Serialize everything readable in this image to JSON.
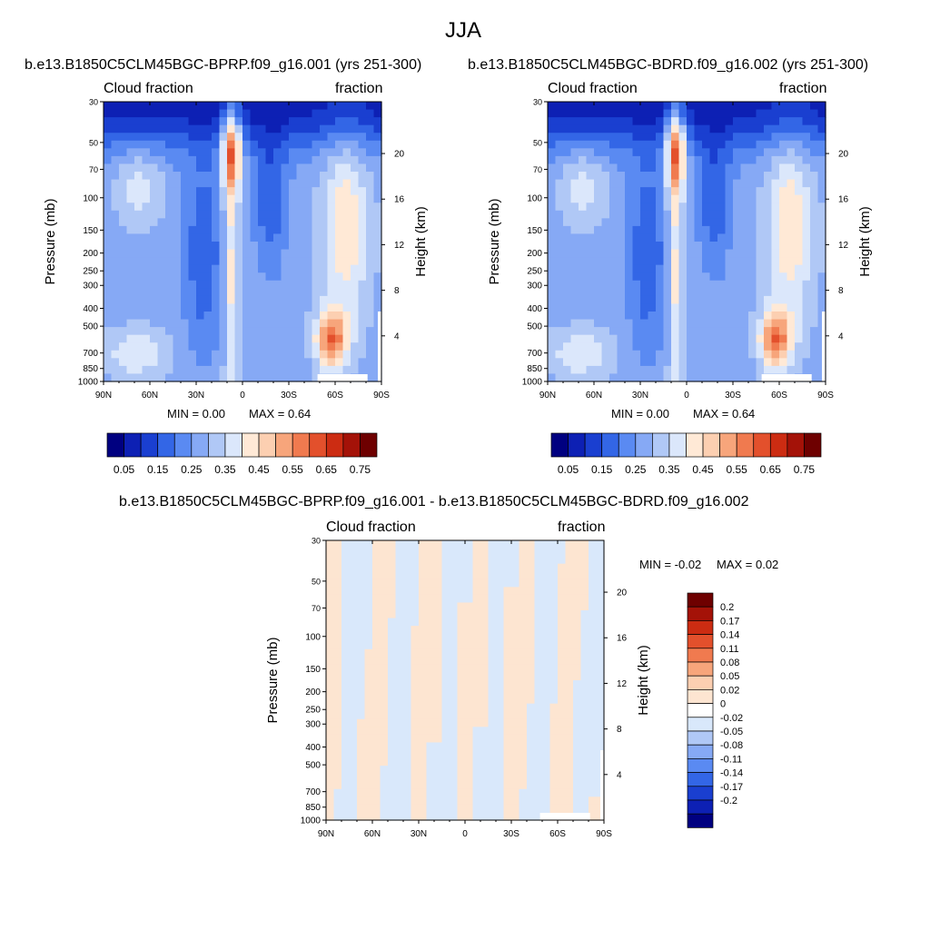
{
  "figure": {
    "title": "JJA"
  },
  "colors": {
    "full_palette": [
      "#000080",
      "#0d20b4",
      "#1a3fd0",
      "#3366e6",
      "#5a8af2",
      "#86a9f5",
      "#b0c8f6",
      "#dbe7fb",
      "#ffe9d6",
      "#fccfb1",
      "#f7a57b",
      "#f07a4f",
      "#e3502c",
      "#cc2c12",
      "#a41208",
      "#6e0000"
    ],
    "diff_palette": [
      "#000080",
      "#0d20b4",
      "#1a3fd0",
      "#3366e6",
      "#5a8af2",
      "#86a9f5",
      "#b0c8f6",
      "#d9e8fb",
      "#ffffff",
      "#fde5d1",
      "#fccfb1",
      "#f7a57b",
      "#f07a4f",
      "#e3502c",
      "#cc2c12",
      "#a41208",
      "#6e0000"
    ]
  },
  "chart_data": [
    {
      "type": "heatmap",
      "panel": "top-left",
      "title": "b.e13.B1850C5CLM45BGC-BPRP.f09_g16.001 (yrs 251-300)",
      "left_label": "Cloud fraction",
      "right_label": "fraction",
      "ylabel": "Pressure (mb)",
      "ylabel_right": "Height (km)",
      "x_ticks": [
        "90N",
        "60N",
        "30N",
        "0",
        "30S",
        "60S",
        "90S"
      ],
      "y_ticks": [
        "30",
        "50",
        "70",
        "100",
        "150",
        "200",
        "250",
        "300",
        "400",
        "500",
        "700",
        "850",
        "1000"
      ],
      "y_tick_values": [
        30,
        50,
        70,
        100,
        150,
        200,
        250,
        300,
        400,
        500,
        700,
        850,
        1000
      ],
      "right_ticks": [
        "20",
        "16",
        "12",
        "8",
        "4"
      ],
      "right_tick_values": [
        20,
        16,
        12,
        8,
        4
      ],
      "ylim": [
        1000,
        30
      ],
      "xlim": [
        90,
        -90
      ],
      "min_label": "MIN =   0.00",
      "max_label": "MAX =   0.64",
      "min": 0.0,
      "max": 0.64,
      "colorbar_labels": [
        "0.05",
        "0.15",
        "0.25",
        "0.35",
        "0.45",
        "0.55",
        "0.65",
        "0.75"
      ]
    },
    {
      "type": "heatmap",
      "panel": "top-right",
      "title": "b.e13.B1850C5CLM45BGC-BDRD.f09_g16.002 (yrs 251-300)",
      "left_label": "Cloud fraction",
      "right_label": "fraction",
      "ylabel": "Pressure (mb)",
      "ylabel_right": "Height (km)",
      "x_ticks": [
        "90N",
        "60N",
        "30N",
        "0",
        "30S",
        "60S",
        "90S"
      ],
      "y_ticks": [
        "30",
        "50",
        "70",
        "100",
        "150",
        "200",
        "250",
        "300",
        "400",
        "500",
        "700",
        "850",
        "1000"
      ],
      "y_tick_values": [
        30,
        50,
        70,
        100,
        150,
        200,
        250,
        300,
        400,
        500,
        700,
        850,
        1000
      ],
      "right_ticks": [
        "20",
        "16",
        "12",
        "8",
        "4"
      ],
      "right_tick_values": [
        20,
        16,
        12,
        8,
        4
      ],
      "ylim": [
        1000,
        30
      ],
      "xlim": [
        90,
        -90
      ],
      "min_label": "MIN =   0.00",
      "max_label": "MAX =   0.64",
      "min": 0.0,
      "max": 0.64,
      "colorbar_labels": [
        "0.05",
        "0.15",
        "0.25",
        "0.35",
        "0.45",
        "0.55",
        "0.65",
        "0.75"
      ]
    },
    {
      "type": "heatmap",
      "panel": "bottom",
      "title": "b.e13.B1850C5CLM45BGC-BPRP.f09_g16.001 - b.e13.B1850C5CLM45BGC-BDRD.f09_g16.002",
      "left_label": "Cloud fraction",
      "right_label": "fraction",
      "ylabel": "Pressure (mb)",
      "ylabel_right": "Height (km)",
      "x_ticks": [
        "90N",
        "60N",
        "30N",
        "0",
        "30S",
        "60S",
        "90S"
      ],
      "y_ticks": [
        "30",
        "50",
        "70",
        "100",
        "150",
        "200",
        "250",
        "300",
        "400",
        "500",
        "700",
        "850",
        "1000"
      ],
      "y_tick_values": [
        30,
        50,
        70,
        100,
        150,
        200,
        250,
        300,
        400,
        500,
        700,
        850,
        1000
      ],
      "right_ticks": [
        "20",
        "16",
        "12",
        "8",
        "4"
      ],
      "right_tick_values": [
        20,
        16,
        12,
        8,
        4
      ],
      "ylim": [
        1000,
        30
      ],
      "xlim": [
        90,
        -90
      ],
      "min_label": "MIN =  -0.02",
      "max_label": "MAX =   0.02",
      "min": -0.02,
      "max": 0.02,
      "colorbar_labels": [
        "0.2",
        "0.17",
        "0.14",
        "0.11",
        "0.08",
        "0.05",
        "0.02",
        "0",
        "-0.02",
        "-0.05",
        "-0.08",
        "-0.11",
        "-0.14",
        "-0.17",
        "-0.2"
      ]
    }
  ]
}
